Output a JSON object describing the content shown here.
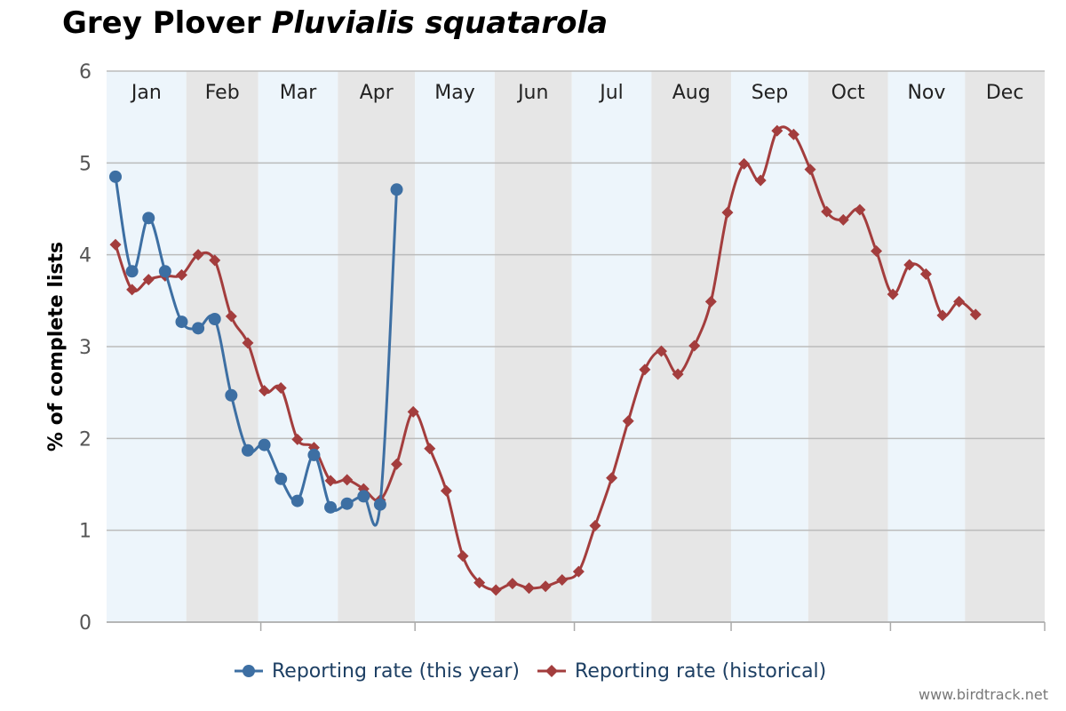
{
  "title": {
    "common": "Grey Plover",
    "scientific": "Pluvialis squatarola"
  },
  "credit": "www.birdtrack.net",
  "colors": {
    "this_year": "#3d6fa3",
    "historical": "#a33d3d",
    "band_light": "#edf5fb",
    "band_dark": "#e6e6e6",
    "grid": "#bbbbbb"
  },
  "chart_data": {
    "type": "line",
    "title": "Grey Plover Pluvialis squatarola",
    "xlabel": "",
    "ylabel": "% of complete lists",
    "ylim": [
      0,
      6
    ],
    "yticks": [
      0,
      1,
      2,
      3,
      4,
      5,
      6
    ],
    "grid": true,
    "legend_position": "bottom",
    "months": [
      "Jan",
      "Feb",
      "Mar",
      "Apr",
      "May",
      "Jun",
      "Jul",
      "Aug",
      "Sep",
      "Oct",
      "Nov",
      "Dec"
    ],
    "x_unit": "week of year",
    "series": [
      {
        "name": "Reporting rate (this year)",
        "marker": "circle",
        "x": [
          1,
          2,
          3,
          4,
          5,
          6,
          7,
          8,
          9,
          10,
          11,
          12,
          13,
          14,
          15,
          16,
          17,
          18
        ],
        "values": [
          4.85,
          3.82,
          4.4,
          3.82,
          3.27,
          3.2,
          3.3,
          2.47,
          1.87,
          1.93,
          1.56,
          1.32,
          1.82,
          1.25,
          1.29,
          1.37,
          1.28,
          4.71
        ]
      },
      {
        "name": "Reporting rate (historical)",
        "marker": "diamond",
        "x": [
          1,
          2,
          3,
          4,
          5,
          6,
          7,
          8,
          9,
          10,
          11,
          12,
          13,
          14,
          15,
          16,
          17,
          18,
          19,
          20,
          21,
          22,
          23,
          24,
          25,
          26,
          27,
          28,
          29,
          30,
          31,
          32,
          33,
          34,
          35,
          36,
          37,
          38,
          39,
          40,
          41,
          42,
          43,
          44,
          45,
          46,
          47,
          48,
          49,
          50,
          51,
          52,
          53
        ],
        "values": [
          4.11,
          3.62,
          3.73,
          3.77,
          3.78,
          4.0,
          3.94,
          3.33,
          3.04,
          2.52,
          2.55,
          1.99,
          1.9,
          1.54,
          1.55,
          1.45,
          1.33,
          1.72,
          2.29,
          1.89,
          1.43,
          0.72,
          0.43,
          0.35,
          0.42,
          0.37,
          0.39,
          0.46,
          0.55,
          1.05,
          1.57,
          2.19,
          2.75,
          2.95,
          2.7,
          3.01,
          3.49,
          4.46,
          4.99,
          4.81,
          5.35,
          5.31,
          4.93,
          4.47,
          4.38,
          4.49,
          4.04,
          3.57,
          3.89,
          3.79,
          3.34,
          3.49,
          3.35
        ]
      }
    ]
  }
}
